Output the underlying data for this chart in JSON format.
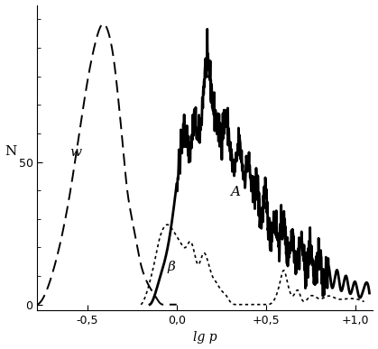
{
  "xlim": [
    -0.78,
    1.1
  ],
  "ylim": [
    -2,
    105
  ],
  "xlabel": "lg p",
  "ylabel": "N",
  "xticks": [
    -0.5,
    0.0,
    0.5,
    1.0
  ],
  "xticklabels": [
    "-0,5",
    "0,0",
    "+0,5",
    "+1,0"
  ],
  "yticks": [
    0,
    50
  ],
  "background_color": "#ffffff",
  "label_W": "w",
  "label_A": "A",
  "label_beta": "β",
  "W_x": [
    -0.78,
    -0.75,
    -0.7,
    -0.65,
    -0.6,
    -0.55,
    -0.5,
    -0.45,
    -0.42,
    -0.38,
    -0.35,
    -0.32,
    -0.3,
    -0.28,
    -0.25,
    -0.22,
    -0.2,
    -0.18,
    -0.15,
    -0.12,
    -0.1,
    -0.08,
    -0.05,
    -0.02,
    0.0
  ],
  "W_y": [
    0,
    2,
    10,
    22,
    38,
    58,
    78,
    93,
    98,
    95,
    85,
    68,
    55,
    42,
    30,
    20,
    14,
    10,
    6,
    3,
    1,
    0,
    0,
    0,
    0
  ],
  "A_x": [
    -0.15,
    -0.13,
    -0.1,
    -0.05,
    -0.02,
    0.0,
    0.02,
    0.05,
    0.08,
    0.1,
    0.12,
    0.15,
    0.17,
    0.2,
    0.22,
    0.25,
    0.28,
    0.3,
    0.33,
    0.35,
    0.38,
    0.4,
    0.43,
    0.45,
    0.47,
    0.5,
    0.52,
    0.55,
    0.57,
    0.6,
    0.62,
    0.65,
    0.67,
    0.7,
    0.72,
    0.75,
    0.77,
    0.8,
    0.82,
    0.85,
    0.87,
    0.9,
    0.92,
    0.95,
    0.97,
    1.0,
    1.02,
    1.05,
    1.08
  ],
  "A_y": [
    0,
    2,
    8,
    20,
    32,
    42,
    52,
    60,
    55,
    65,
    58,
    75,
    85,
    72,
    65,
    60,
    65,
    55,
    48,
    56,
    45,
    50,
    38,
    42,
    30,
    38,
    25,
    30,
    22,
    28,
    18,
    24,
    15,
    22,
    12,
    20,
    10,
    16,
    8,
    14,
    6,
    12,
    5,
    10,
    4,
    8,
    3,
    6,
    4
  ],
  "B_x": [
    -0.2,
    -0.18,
    -0.15,
    -0.12,
    -0.1,
    -0.08,
    -0.05,
    -0.02,
    0.0,
    0.02,
    0.05,
    0.08,
    0.1,
    0.12,
    0.15,
    0.18,
    0.2,
    0.22,
    0.25,
    0.28,
    0.3,
    0.33,
    0.35,
    0.38,
    0.4,
    0.43,
    0.45,
    0.5,
    0.55,
    0.58,
    0.6,
    0.62,
    0.65,
    0.68,
    0.7,
    0.75,
    0.8,
    0.85,
    0.9,
    0.95,
    1.0,
    1.05
  ],
  "B_y": [
    0,
    2,
    8,
    16,
    22,
    26,
    28,
    26,
    24,
    22,
    20,
    22,
    18,
    14,
    18,
    14,
    10,
    8,
    5,
    3,
    1,
    0,
    0,
    0,
    0,
    0,
    0,
    0,
    2,
    8,
    12,
    8,
    3,
    5,
    2,
    3,
    2,
    3,
    2,
    2,
    2,
    1
  ]
}
